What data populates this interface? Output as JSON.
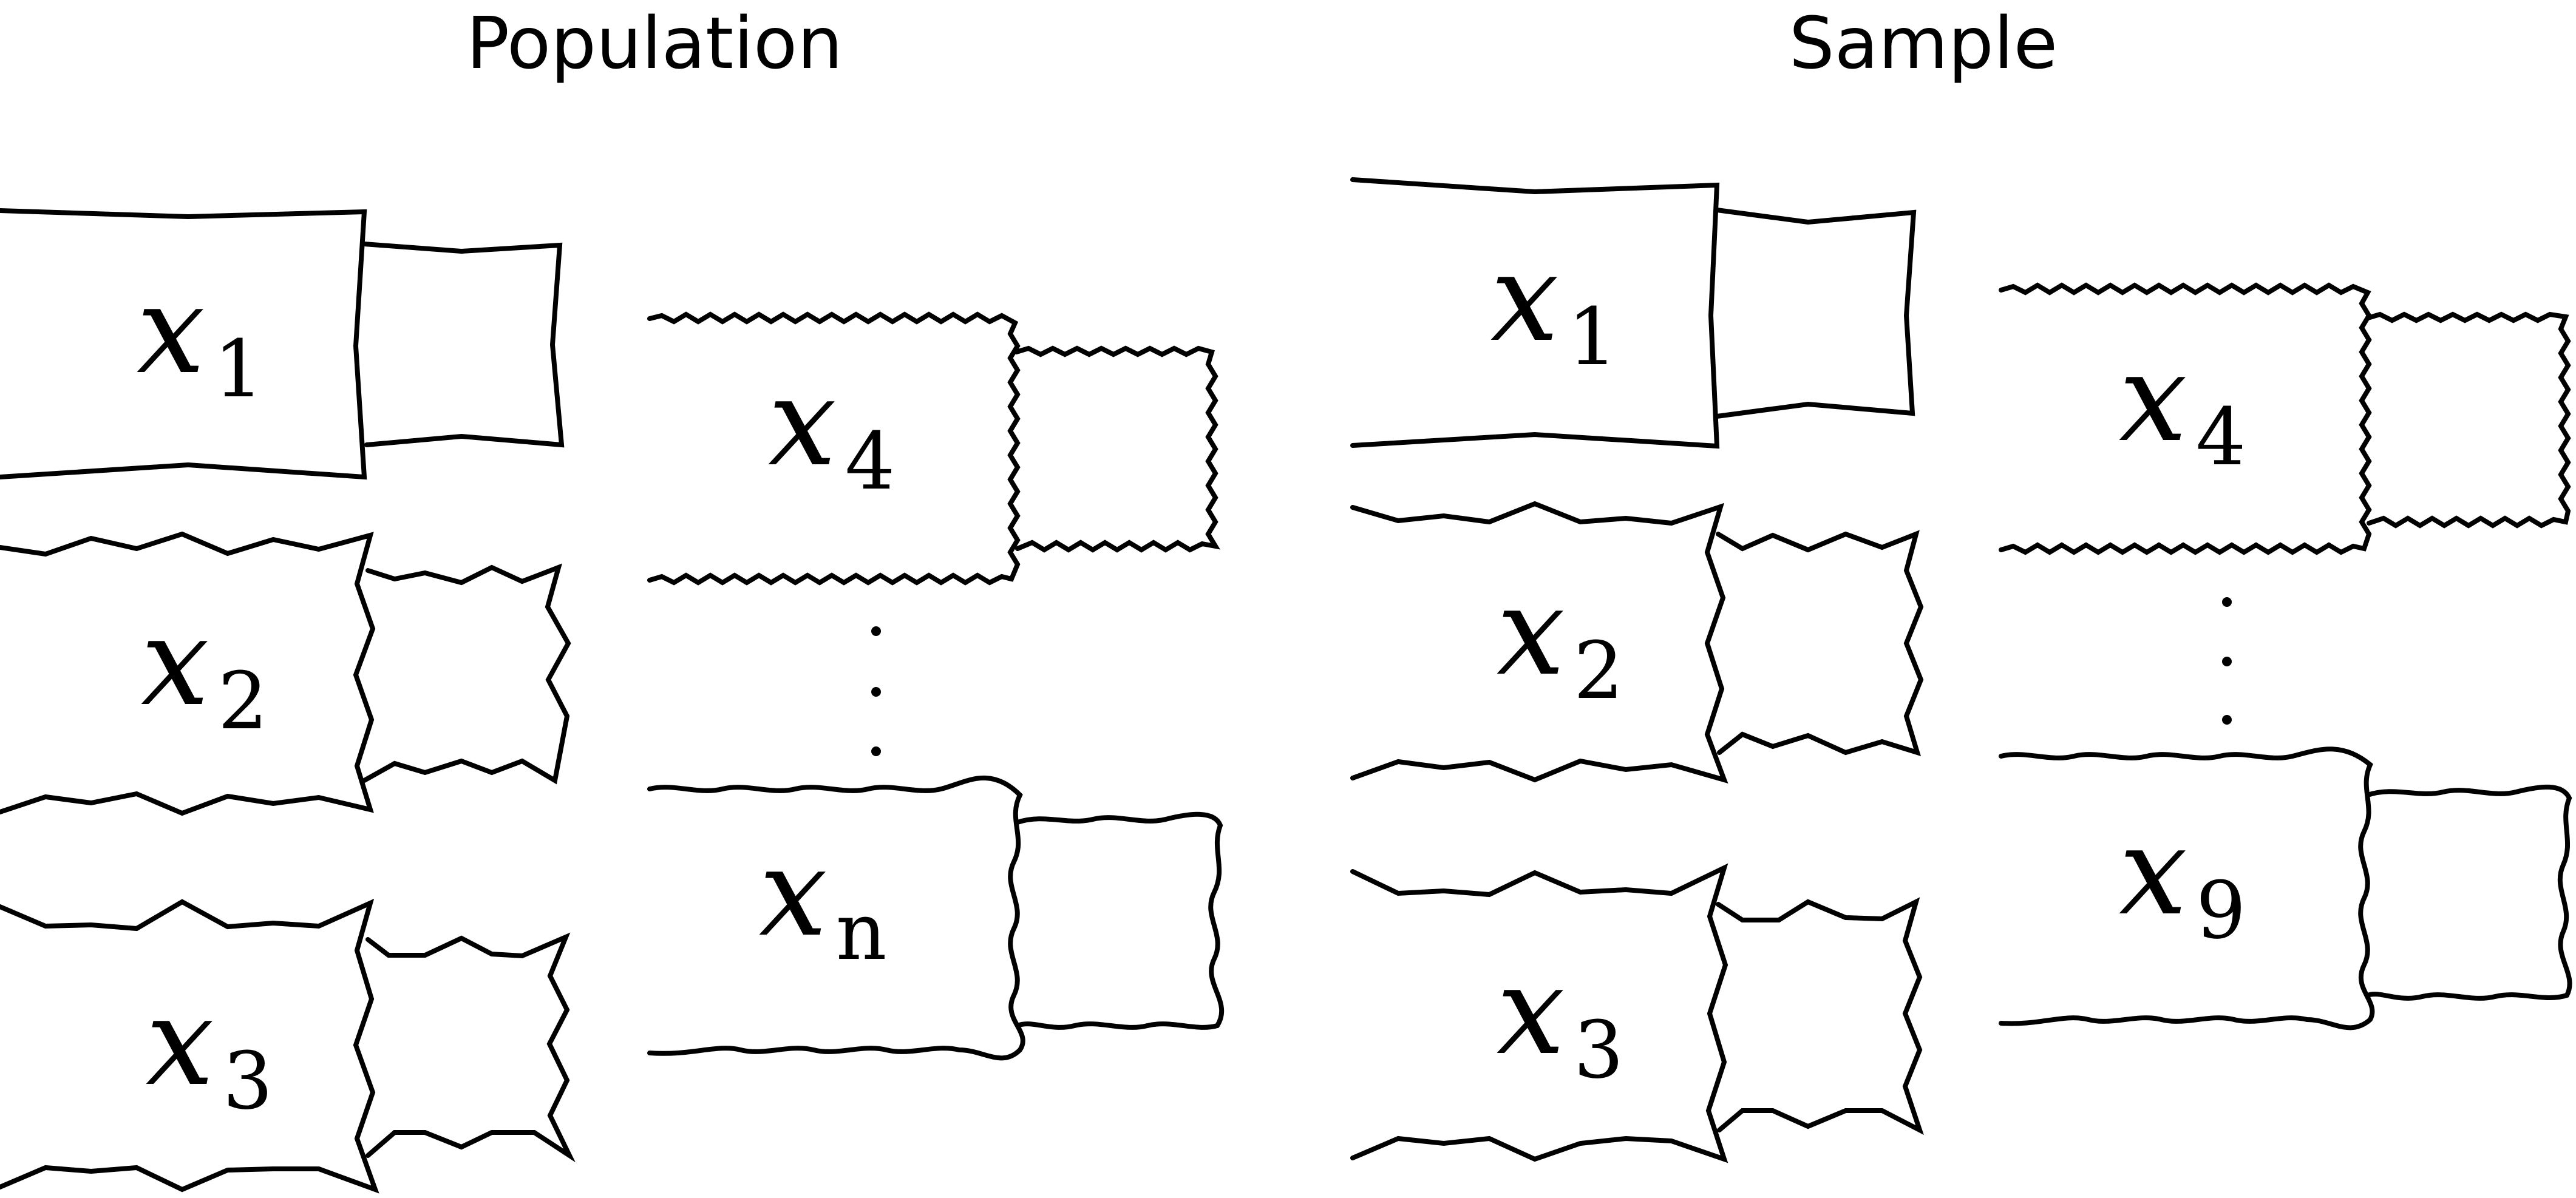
{
  "headings": {
    "population": "Population",
    "sample": "Sample"
  },
  "population": {
    "items": [
      {
        "var": "x",
        "sub": "1",
        "edge": "straight"
      },
      {
        "var": "x",
        "sub": "2",
        "edge": "jagged"
      },
      {
        "var": "x",
        "sub": "3",
        "edge": "jagged"
      },
      {
        "var": "x",
        "sub": "4",
        "edge": "zigzag"
      },
      {
        "var": "x",
        "sub": "n",
        "edge": "wavy"
      }
    ]
  },
  "sample": {
    "items": [
      {
        "var": "x",
        "sub": "1",
        "edge": "straight"
      },
      {
        "var": "x",
        "sub": "2",
        "edge": "jagged"
      },
      {
        "var": "x",
        "sub": "3",
        "edge": "jagged"
      },
      {
        "var": "x",
        "sub": "4",
        "edge": "zigzag"
      },
      {
        "var": "x",
        "sub": "9",
        "edge": "wavy"
      }
    ]
  },
  "colors": {
    "stroke": "#000000",
    "background": "#ffffff"
  }
}
